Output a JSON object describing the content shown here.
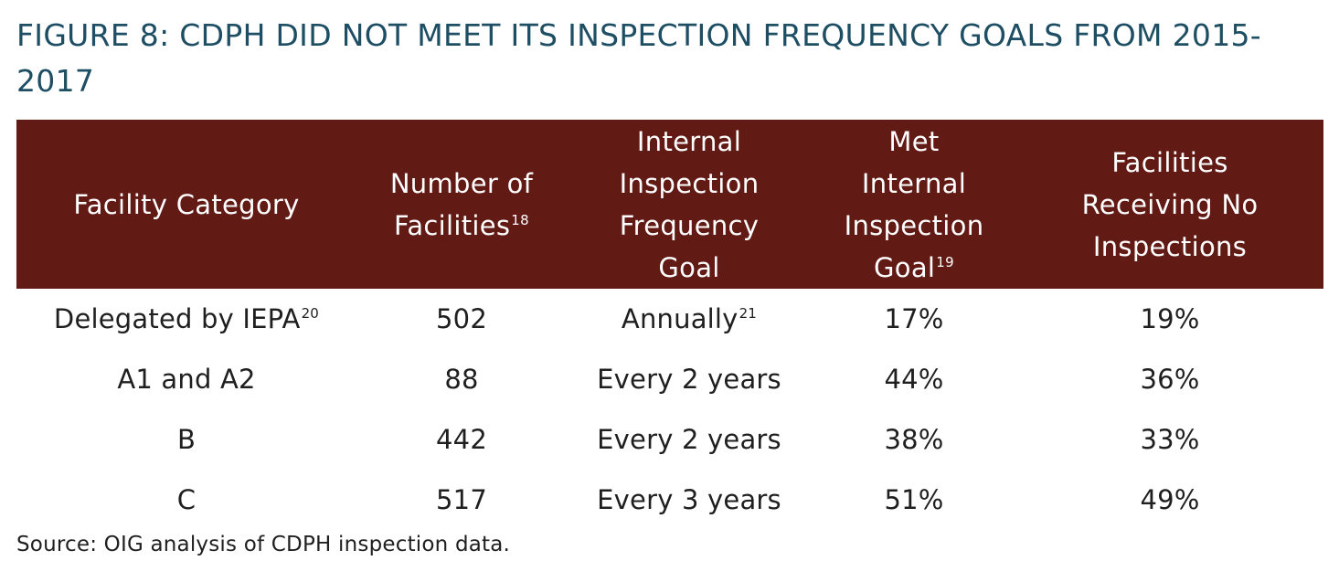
{
  "title": "FIGURE 8: CDPH DID NOT MEET ITS INSPECTION FREQUENCY GOALS FROM 2015-2017",
  "table": {
    "headers": [
      {
        "lines": [
          "Facility Category"
        ],
        "sup": ""
      },
      {
        "lines": [
          "Number of",
          "Facilities"
        ],
        "sup": "18"
      },
      {
        "lines": [
          "Internal",
          "Inspection",
          "Frequency",
          "Goal"
        ],
        "sup": ""
      },
      {
        "lines": [
          "Met",
          "Internal",
          "Inspection",
          "Goal"
        ],
        "sup": "19"
      },
      {
        "lines": [
          "Facilities",
          "Receiving No",
          "Inspections"
        ],
        "sup": ""
      }
    ],
    "header_bg": "#611a14",
    "rows": [
      {
        "category": "Delegated by IEPA",
        "category_sup": "20",
        "count": "502",
        "goal": "Annually",
        "goal_sup": "21",
        "met": "17%",
        "none": "19%"
      },
      {
        "category": "A1 and A2",
        "category_sup": "",
        "count": "88",
        "goal": "Every 2 years",
        "goal_sup": "",
        "met": "44%",
        "none": "36%"
      },
      {
        "category": "B",
        "category_sup": "",
        "count": "442",
        "goal": "Every 2 years",
        "goal_sup": "",
        "met": "38%",
        "none": "33%"
      },
      {
        "category": "C",
        "category_sup": "",
        "count": "517",
        "goal": "Every 3 years",
        "goal_sup": "",
        "met": "51%",
        "none": "49%"
      }
    ]
  },
  "source": "Source: OIG analysis of CDPH inspection data."
}
